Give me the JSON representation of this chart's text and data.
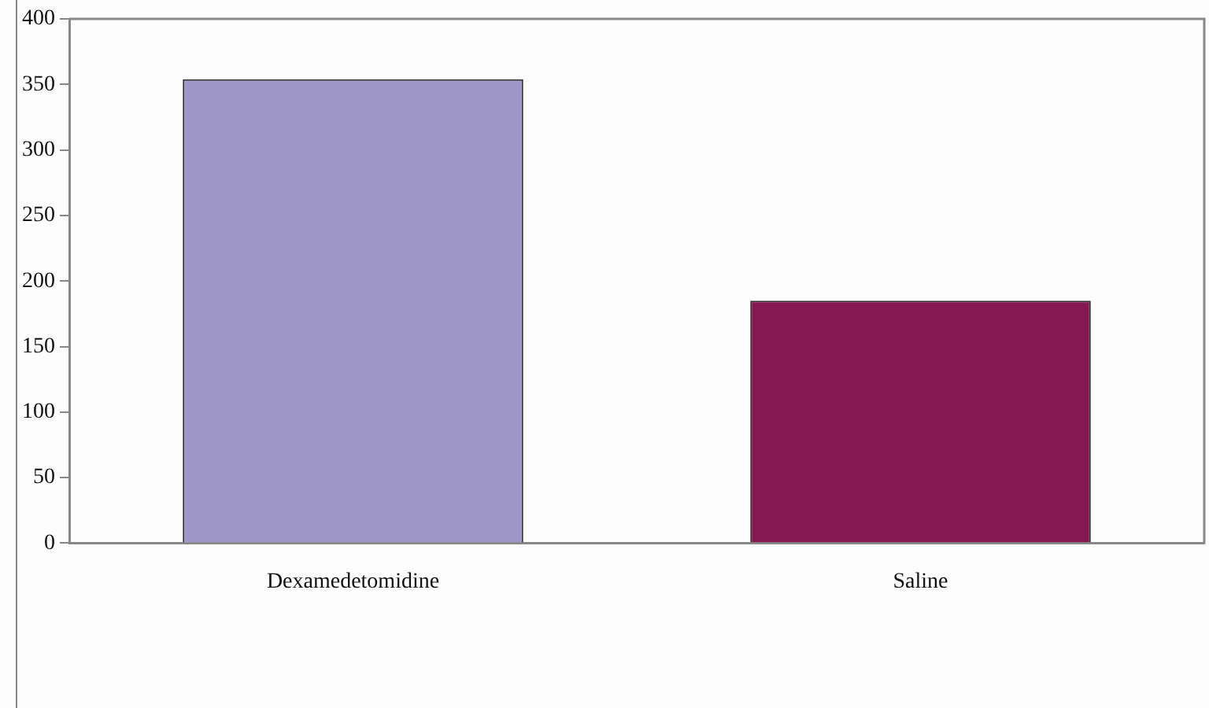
{
  "chart_data": {
    "type": "bar",
    "categories": [
      "Dexamedetomidine",
      "Saline"
    ],
    "values": [
      354,
      185
    ],
    "colors": [
      "#9f96c8",
      "#851852"
    ],
    "ylim": [
      0,
      400
    ],
    "yticks": [
      0,
      50,
      100,
      150,
      200,
      250,
      300,
      350,
      400
    ],
    "grid": false,
    "legend": false
  }
}
